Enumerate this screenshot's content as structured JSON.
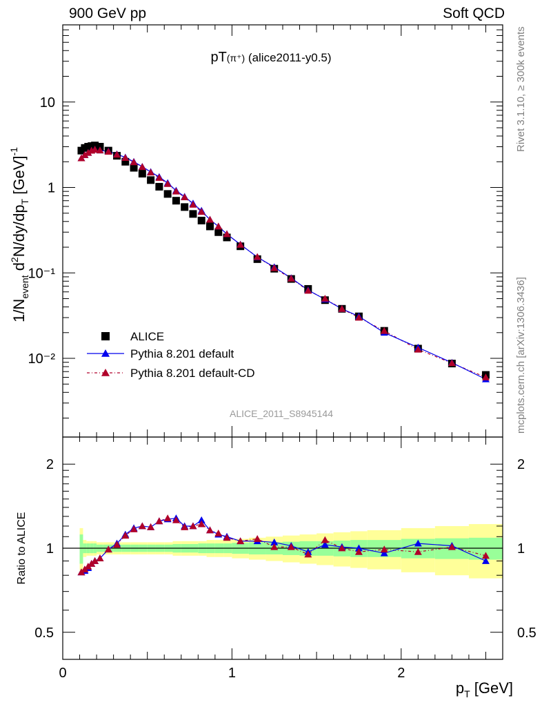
{
  "header": {
    "left": "900 GeV pp",
    "right": "Soft QCD"
  },
  "title_main": "pT",
  "title_paren": "(π⁺)",
  "title_rest": "(alice2011-y0.5)",
  "side": {
    "rivet": "Rivet 3.1.10, ≥ 300k events",
    "mcplots": "mcplots.cern.ch [arXiv:1306.3436]"
  },
  "watermark": "ALICE_2011_S8945144",
  "axes": {
    "ylabel_main": "1/N_event d²N/dy/dp_T [GeV]⁻¹",
    "ylabel_ratio": "Ratio to ALICE",
    "xlabel": "p_T [GeV]"
  },
  "colors": {
    "data": "#000000",
    "default": "#0000ee",
    "cd": "#b0002a",
    "band_inner": "#99ff99",
    "band_outer": "#ffff99"
  },
  "chart_data": [
    {
      "type": "scatter",
      "panel": "main",
      "yscale": "log",
      "ylim": [
        0.0012,
        80
      ],
      "xlim": [
        0,
        2.6
      ],
      "yticks": [
        "10⁻²",
        "10⁻¹",
        "1",
        "10"
      ],
      "legend_placement": "lower-left",
      "series": [
        {
          "name": "ALICE",
          "marker": "square",
          "x": [
            0.11,
            0.13,
            0.15,
            0.17,
            0.19,
            0.22,
            0.27,
            0.32,
            0.37,
            0.42,
            0.47,
            0.52,
            0.57,
            0.62,
            0.67,
            0.72,
            0.77,
            0.82,
            0.87,
            0.92,
            0.97,
            1.05,
            1.15,
            1.25,
            1.35,
            1.45,
            1.55,
            1.65,
            1.75,
            1.9,
            2.1,
            2.3,
            2.5
          ],
          "y": [
            2.7,
            2.9,
            3.0,
            3.05,
            3.1,
            3.0,
            2.7,
            2.35,
            2.0,
            1.7,
            1.45,
            1.22,
            1.02,
            0.84,
            0.7,
            0.59,
            0.49,
            0.41,
            0.35,
            0.3,
            0.26,
            0.205,
            0.145,
            0.112,
            0.085,
            0.065,
            0.048,
            0.038,
            0.031,
            0.021,
            0.013,
            0.0087,
            0.0064
          ]
        },
        {
          "name": "Pythia 8.201 default",
          "marker": "triangle",
          "x": [
            0.11,
            0.13,
            0.15,
            0.17,
            0.19,
            0.22,
            0.27,
            0.32,
            0.37,
            0.42,
            0.47,
            0.52,
            0.57,
            0.62,
            0.67,
            0.72,
            0.77,
            0.82,
            0.87,
            0.92,
            0.97,
            1.05,
            1.15,
            1.25,
            1.35,
            1.45,
            1.55,
            1.65,
            1.75,
            1.9,
            2.1,
            2.3,
            2.5
          ],
          "y": [
            2.2,
            2.4,
            2.55,
            2.7,
            2.78,
            2.72,
            2.65,
            2.45,
            2.25,
            2.0,
            1.75,
            1.52,
            1.33,
            1.13,
            0.92,
            0.78,
            0.65,
            0.535,
            0.42,
            0.35,
            0.285,
            0.215,
            0.153,
            0.117,
            0.087,
            0.063,
            0.049,
            0.038,
            0.031,
            0.02,
            0.0134,
            0.0089,
            0.0057
          ]
        },
        {
          "name": "Pythia 8.201 default-CD",
          "marker": "triangle",
          "x": [
            0.11,
            0.13,
            0.15,
            0.17,
            0.19,
            0.22,
            0.27,
            0.32,
            0.37,
            0.42,
            0.47,
            0.52,
            0.57,
            0.62,
            0.67,
            0.72,
            0.77,
            0.82,
            0.87,
            0.92,
            0.97,
            1.05,
            1.15,
            1.25,
            1.35,
            1.45,
            1.55,
            1.65,
            1.75,
            1.9,
            2.1,
            2.3,
            2.5
          ],
          "y": [
            2.2,
            2.4,
            2.55,
            2.7,
            2.78,
            2.72,
            2.63,
            2.43,
            2.22,
            1.98,
            1.74,
            1.5,
            1.3,
            1.1,
            0.9,
            0.77,
            0.63,
            0.52,
            0.42,
            0.35,
            0.285,
            0.214,
            0.154,
            0.114,
            0.086,
            0.062,
            0.05,
            0.038,
            0.03,
            0.021,
            0.0127,
            0.0088,
            0.006
          ]
        }
      ]
    },
    {
      "type": "line",
      "panel": "ratio",
      "yscale": "log",
      "ylim": [
        0.4,
        2.5
      ],
      "xlim": [
        0,
        2.6
      ],
      "xticks": [
        "0",
        "1",
        "2"
      ],
      "yticks": [
        "0.5",
        "1",
        "2"
      ],
      "band": {
        "x_edges": [
          0.1,
          0.12,
          0.14,
          0.16,
          0.18,
          0.2,
          0.24,
          0.3,
          0.35,
          0.4,
          0.45,
          0.5,
          0.55,
          0.6,
          0.65,
          0.7,
          0.75,
          0.8,
          0.85,
          0.9,
          0.95,
          1.0,
          1.1,
          1.2,
          1.3,
          1.4,
          1.5,
          1.6,
          1.7,
          1.8,
          2.0,
          2.2,
          2.4,
          2.6
        ],
        "inner": [
          0.12,
          0.04,
          0.04,
          0.04,
          0.04,
          0.03,
          0.03,
          0.03,
          0.03,
          0.03,
          0.03,
          0.03,
          0.03,
          0.03,
          0.035,
          0.035,
          0.035,
          0.04,
          0.04,
          0.04,
          0.04,
          0.045,
          0.05,
          0.05,
          0.055,
          0.06,
          0.06,
          0.065,
          0.07,
          0.07,
          0.08,
          0.085,
          0.09
        ],
        "outer": [
          0.18,
          0.07,
          0.06,
          0.06,
          0.06,
          0.05,
          0.05,
          0.05,
          0.05,
          0.05,
          0.05,
          0.05,
          0.05,
          0.05,
          0.06,
          0.06,
          0.06,
          0.06,
          0.07,
          0.07,
          0.07,
          0.08,
          0.09,
          0.1,
          0.11,
          0.12,
          0.13,
          0.14,
          0.15,
          0.16,
          0.18,
          0.2,
          0.22
        ]
      },
      "series": [
        {
          "name": "Pythia 8.201 default",
          "x": [
            0.11,
            0.13,
            0.15,
            0.17,
            0.19,
            0.22,
            0.27,
            0.32,
            0.37,
            0.42,
            0.47,
            0.52,
            0.57,
            0.62,
            0.67,
            0.72,
            0.77,
            0.82,
            0.87,
            0.92,
            0.97,
            1.05,
            1.15,
            1.25,
            1.35,
            1.45,
            1.55,
            1.65,
            1.75,
            1.9,
            2.1,
            2.3,
            2.5
          ],
          "y": [
            0.82,
            0.83,
            0.85,
            0.88,
            0.9,
            0.92,
            0.99,
            1.04,
            1.12,
            1.18,
            1.2,
            1.19,
            1.25,
            1.27,
            1.28,
            1.2,
            1.2,
            1.26,
            1.16,
            1.12,
            1.1,
            1.06,
            1.06,
            1.05,
            1.02,
            0.97,
            1.03,
            1.01,
            1.0,
            0.96,
            1.04,
            1.02,
            0.9
          ]
        },
        {
          "name": "Pythia 8.201 default-CD",
          "x": [
            0.11,
            0.13,
            0.15,
            0.17,
            0.19,
            0.22,
            0.27,
            0.32,
            0.37,
            0.42,
            0.47,
            0.52,
            0.57,
            0.62,
            0.67,
            0.72,
            0.77,
            0.82,
            0.87,
            0.92,
            0.97,
            1.05,
            1.15,
            1.25,
            1.35,
            1.45,
            1.55,
            1.65,
            1.75,
            1.9,
            2.1,
            2.3,
            2.5
          ],
          "y": [
            0.82,
            0.84,
            0.86,
            0.88,
            0.9,
            0.92,
            0.99,
            1.03,
            1.11,
            1.17,
            1.2,
            1.19,
            1.25,
            1.28,
            1.26,
            1.19,
            1.2,
            1.22,
            1.16,
            1.13,
            1.09,
            1.06,
            1.08,
            1.01,
            1.01,
            0.95,
            1.07,
            1.0,
            0.97,
            0.99,
            0.97,
            1.01,
            0.94
          ]
        }
      ]
    }
  ]
}
